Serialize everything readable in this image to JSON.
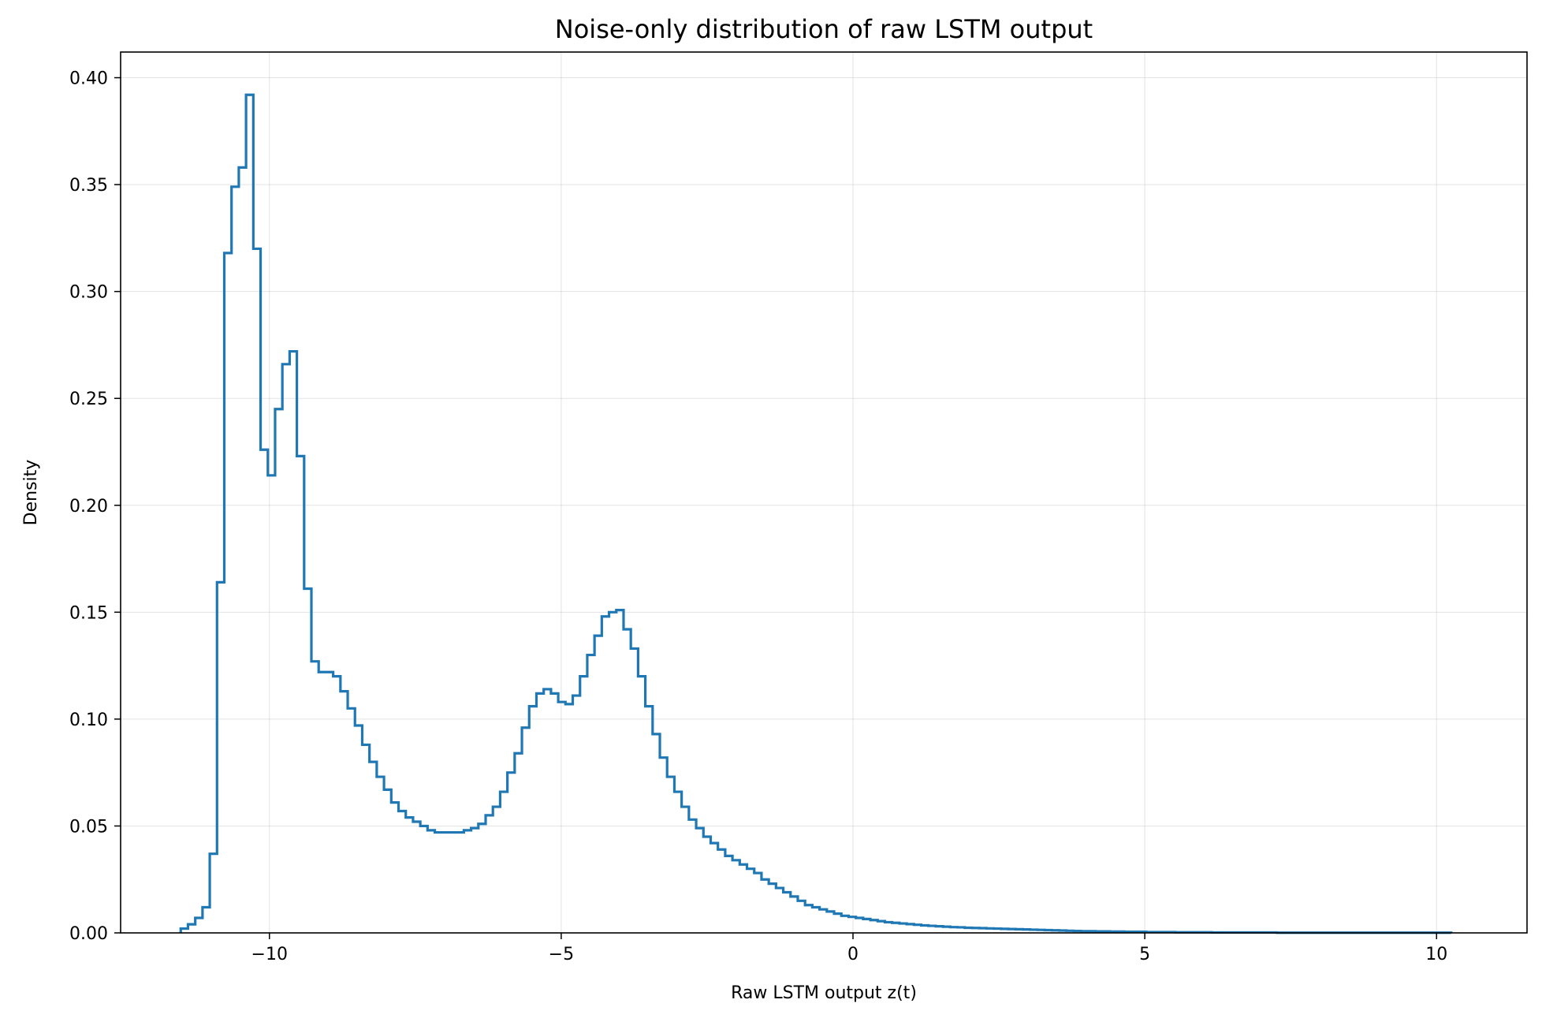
{
  "chart_data": {
    "type": "histogram-step",
    "title": "Noise-only distribution of raw LSTM output",
    "xlabel": "Raw LSTM output z(t)",
    "ylabel": "Density",
    "xlim": [
      -12.55,
      11.55
    ],
    "ylim": [
      0,
      0.412
    ],
    "xticks": [
      -10,
      -5,
      0,
      5,
      10
    ],
    "xtick_labels": [
      "−10",
      "−5",
      "0",
      "5",
      "10"
    ],
    "yticks": [
      0,
      0.05,
      0.1,
      0.15,
      0.2,
      0.25,
      0.3,
      0.35,
      0.4
    ],
    "ytick_labels": [
      "0.00",
      "0.05",
      "0.10",
      "0.15",
      "0.20",
      "0.25",
      "0.30",
      "0.35",
      "0.40"
    ],
    "grid": true,
    "color": "#1f77b4",
    "bins": {
      "start": -11.52,
      "width": 0.1244,
      "density": [
        0.002,
        0.004,
        0.007,
        0.012,
        0.037,
        0.164,
        0.318,
        0.349,
        0.358,
        0.392,
        0.32,
        0.226,
        0.214,
        0.245,
        0.266,
        0.272,
        0.223,
        0.161,
        0.127,
        0.122,
        0.122,
        0.12,
        0.113,
        0.105,
        0.097,
        0.088,
        0.08,
        0.073,
        0.067,
        0.061,
        0.057,
        0.054,
        0.052,
        0.05,
        0.048,
        0.047,
        0.047,
        0.047,
        0.047,
        0.048,
        0.049,
        0.051,
        0.055,
        0.059,
        0.066,
        0.075,
        0.084,
        0.096,
        0.106,
        0.112,
        0.114,
        0.112,
        0.108,
        0.107,
        0.111,
        0.12,
        0.13,
        0.139,
        0.148,
        0.15,
        0.151,
        0.142,
        0.133,
        0.12,
        0.106,
        0.093,
        0.082,
        0.073,
        0.066,
        0.059,
        0.053,
        0.049,
        0.045,
        0.042,
        0.039,
        0.036,
        0.034,
        0.032,
        0.03,
        0.028,
        0.025,
        0.023,
        0.021,
        0.019,
        0.017,
        0.015,
        0.013,
        0.012,
        0.011,
        0.01,
        0.009,
        0.008,
        0.0075,
        0.007,
        0.0065,
        0.006,
        0.0055,
        0.005,
        0.0047,
        0.0044,
        0.0041,
        0.0038,
        0.0035,
        0.0033,
        0.0031,
        0.0029,
        0.0027,
        0.0026,
        0.0024,
        0.0023,
        0.0022,
        0.0021,
        0.002,
        0.0019,
        0.0018,
        0.0017,
        0.0016,
        0.0015,
        0.0014,
        0.0013,
        0.0012,
        0.0011,
        0.001,
        0.0009,
        0.0008,
        0.0008,
        0.0007,
        0.0007,
        0.0006,
        0.0006,
        0.0005,
        0.0005,
        0.0005,
        0.0004,
        0.0004,
        0.0004,
        0.0004,
        0.0003,
        0.0003,
        0.0003,
        0.0003,
        0.0003,
        0.0002,
        0.0002,
        0.0002,
        0.0002,
        0.0002,
        0.0002,
        0.0002,
        0.0002,
        0.0002,
        0.0001,
        0.0001,
        0.0001,
        0.0001,
        0.0001,
        0.0001,
        0.0001,
        0.0001,
        0.0001,
        0.0001,
        0.0001,
        0.0001,
        0.0001,
        0.0001,
        0.0001,
        0.0001,
        0.0001,
        0.0001,
        0.0001,
        0.0001,
        0.0001,
        0.0001,
        0.0001,
        0.0001
      ]
    }
  }
}
